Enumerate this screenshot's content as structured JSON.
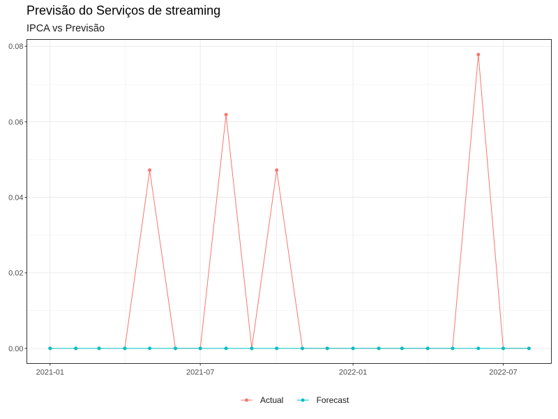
{
  "chart_data": {
    "type": "line",
    "title": "Previsão do Serviços de streaming",
    "subtitle": "IPCA vs Previsão",
    "xlabel": "",
    "ylabel": "",
    "x": [
      "2021-01",
      "2021-02",
      "2021-03",
      "2021-04",
      "2021-05",
      "2021-06",
      "2021-07",
      "2021-08",
      "2021-09",
      "2021-10",
      "2021-11",
      "2021-12",
      "2022-01",
      "2022-02",
      "2022-03",
      "2022-04",
      "2022-05",
      "2022-06",
      "2022-07",
      "2022-08"
    ],
    "series": [
      {
        "name": "Actual",
        "color": "#F8766D",
        "values": [
          0,
          0,
          0,
          0,
          0.0472,
          0,
          0,
          0.0619,
          0,
          0.0472,
          0,
          0,
          0,
          0,
          0,
          0,
          0,
          0.0778,
          0,
          0
        ]
      },
      {
        "name": "Forecast",
        "color": "#00BFC4",
        "values": [
          0,
          0,
          0,
          0,
          0,
          0,
          0,
          0,
          0,
          0,
          0,
          0,
          0,
          0,
          0,
          0,
          0,
          0,
          0,
          0
        ]
      }
    ],
    "series_data_start": {
      "Actual": 3,
      "Forecast": 0
    },
    "x_ticks": [
      "2021-01",
      "2021-07",
      "2022-01",
      "2022-07"
    ],
    "y_ticks": [
      "0.00",
      "0.02",
      "0.04",
      "0.06",
      "0.08"
    ],
    "ylim": [
      -0.004,
      0.0818
    ],
    "xlim": [
      "2020-12-04",
      "2022-08-28"
    ],
    "grid": true,
    "legend_position": "bottom"
  }
}
